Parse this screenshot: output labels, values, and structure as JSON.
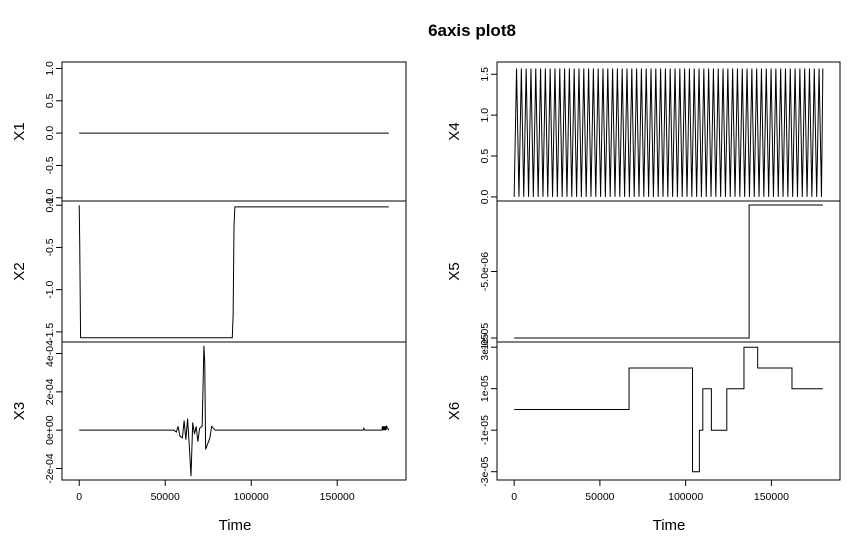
{
  "chart_data": {
    "type": "line",
    "title": "6axis plot8",
    "xlabel": "Time",
    "xlim": [
      -10000,
      190000
    ],
    "x_ticks": [
      "0",
      "50000",
      "100000",
      "150000"
    ],
    "panels": [
      {
        "name": "X1",
        "ylim": [
          -1.05,
          1.1
        ],
        "y_ticks": [
          "-1.0",
          "-0.5",
          "0.0",
          "0.5",
          "1.0"
        ],
        "y_tick_values": [
          -1.0,
          -0.5,
          0.0,
          0.5,
          1.0
        ],
        "points": [
          [
            0,
            0
          ],
          [
            180000,
            0
          ]
        ]
      },
      {
        "name": "X2",
        "ylim": [
          -1.62,
          0.05
        ],
        "y_ticks": [
          "-1.5",
          "-1.0",
          "-0.5",
          "0.0"
        ],
        "y_tick_values": [
          -1.5,
          -1.0,
          -0.5,
          0.0
        ],
        "points": [
          [
            0,
            0
          ],
          [
            300,
            -0.45
          ],
          [
            800,
            -1.57
          ],
          [
            89000,
            -1.57
          ],
          [
            89500,
            -1.3
          ],
          [
            90000,
            -0.25
          ],
          [
            90500,
            -0.02
          ],
          [
            180000,
            -0.02
          ]
        ]
      },
      {
        "name": "X3",
        "ylim": [
          -0.00026,
          0.00046
        ],
        "y_ticks": [
          "-2e-04",
          "0e+00",
          "2e-04",
          "4e-04"
        ],
        "y_tick_values": [
          -0.0002,
          0,
          0.0002,
          0.0004
        ],
        "points": [
          [
            0,
            0
          ],
          [
            55000,
            0
          ],
          [
            56500,
            -1e-05
          ],
          [
            57500,
            2e-05
          ],
          [
            58500,
            -3e-05
          ],
          [
            60000,
            -4e-05
          ],
          [
            61000,
            5e-05
          ],
          [
            62000,
            -5e-05
          ],
          [
            63000,
            6e-05
          ],
          [
            64000,
            -8e-05
          ],
          [
            65000,
            -0.00024
          ],
          [
            66000,
            4e-05
          ],
          [
            67000,
            -2e-05
          ],
          [
            68000,
            2e-05
          ],
          [
            69000,
            -6e-05
          ],
          [
            70000,
            1e-05
          ],
          [
            71500,
            2e-05
          ],
          [
            72500,
            0.00044
          ],
          [
            73000,
            0.00035
          ],
          [
            73500,
            -0.0001
          ],
          [
            76000,
            -4e-05
          ],
          [
            77000,
            2e-05
          ],
          [
            79000,
            0
          ],
          [
            165000,
            0
          ],
          [
            165500,
            1e-05
          ],
          [
            166000,
            0
          ],
          [
            176000,
            0
          ],
          [
            176300,
            2e-05
          ],
          [
            176600,
            0
          ],
          [
            176900,
            2e-05
          ],
          [
            177200,
            0
          ],
          [
            177500,
            2e-05
          ],
          [
            177800,
            0
          ],
          [
            178100,
            2e-05
          ],
          [
            178400,
            0
          ],
          [
            178700,
            2e-05
          ],
          [
            180000,
            0
          ]
        ]
      },
      {
        "name": "X4",
        "ylim": [
          -0.05,
          1.65
        ],
        "y_ticks": [
          "0.0",
          "0.5",
          "1.0",
          "1.5"
        ],
        "y_tick_values": [
          0.0,
          0.5,
          1.0,
          1.5
        ],
        "oscillation": {
          "x_start": 0,
          "x_end": 180000,
          "period": 2800,
          "low": 0.0,
          "high": 1.57
        }
      },
      {
        "name": "X5",
        "ylim": [
          -1.03e-05,
          3e-07
        ],
        "y_ticks": [
          "-1e-05",
          "-5.0e-06"
        ],
        "y_tick_values": [
          -1e-05,
          -5e-06
        ],
        "points": [
          [
            0,
            -1e-05
          ],
          [
            137000,
            -1e-05
          ],
          [
            137000,
            0
          ],
          [
            180000,
            0
          ]
        ]
      },
      {
        "name": "X6",
        "ylim": [
          -3.4e-05,
          3.25e-05
        ],
        "y_ticks": [
          "-3e-05",
          "-1e-05",
          "1e-05",
          "3e-05"
        ],
        "y_tick_values": [
          -3e-05,
          -1e-05,
          1e-05,
          3e-05
        ],
        "points": [
          [
            0,
            0
          ],
          [
            67000,
            0
          ],
          [
            67000,
            2e-05
          ],
          [
            104000,
            2e-05
          ],
          [
            104000,
            -3e-05
          ],
          [
            108000,
            -3e-05
          ],
          [
            108000,
            -1e-05
          ],
          [
            110000,
            -1e-05
          ],
          [
            110000,
            1e-05
          ],
          [
            115000,
            1e-05
          ],
          [
            115000,
            -1e-05
          ],
          [
            124000,
            -1e-05
          ],
          [
            124000,
            1e-05
          ],
          [
            134000,
            1e-05
          ],
          [
            134000,
            3e-05
          ],
          [
            142000,
            3e-05
          ],
          [
            142000,
            2e-05
          ],
          [
            162000,
            2e-05
          ],
          [
            162000,
            1e-05
          ],
          [
            180000,
            1e-05
          ]
        ]
      }
    ]
  }
}
